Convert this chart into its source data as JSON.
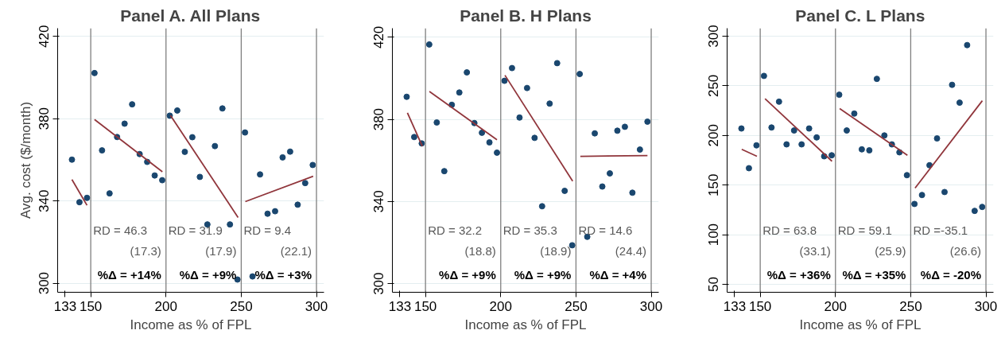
{
  "chart_data": [
    {
      "type": "scatter",
      "title": "Panel A. All Plans",
      "xlabel": "Income as % of FPL",
      "ylabel": "Avg. cost ($/month)",
      "xlim": [
        128,
        305
      ],
      "ylim": [
        295.6,
        424
      ],
      "xticks": [
        133,
        150,
        200,
        250,
        300
      ],
      "yticks": [
        300,
        340,
        380,
        420
      ],
      "grid": "y",
      "series": [
        {
          "marker": "circle",
          "color": "#1a476f",
          "x": [
            137.5,
            142.5,
            147.5,
            152.5,
            157.5,
            162.5,
            167.5,
            172.5,
            177.5,
            182.5,
            187.5,
            192.5,
            197.5,
            202.5,
            207.5,
            212.5,
            217.5,
            222.5,
            227.5,
            232.5,
            237.5,
            242.5,
            247.5,
            252.5,
            257.5,
            262.5,
            267.5,
            272.5,
            277.5,
            282.5,
            287.5,
            292.5,
            297.5
          ],
          "values": [
            360.1,
            339.4,
            341.5,
            402.2,
            364.6,
            343.7,
            371.1,
            377.6,
            387.0,
            362.8,
            359.0,
            352.4,
            350.1,
            381.5,
            384.0,
            363.9,
            371.0,
            351.7,
            328.6,
            366.7,
            385.0,
            328.6,
            301.8,
            373.3,
            303.3,
            352.9,
            333.8,
            335.0,
            361.2,
            364.0,
            338.2,
            348.7,
            357.5
          ]
        },
        {
          "type": "line",
          "color": "#90353b",
          "x": [
            137.5,
            147.5
          ],
          "values": [
            350.4,
            337.9
          ]
        },
        {
          "type": "line",
          "color": "#90353b",
          "x": [
            152.5,
            197.6
          ],
          "values": [
            379.6,
            354.2
          ]
        },
        {
          "type": "line",
          "color": "#90353b",
          "x": [
            203.0,
            247.9
          ],
          "values": [
            381.6,
            332.0
          ]
        },
        {
          "type": "line",
          "color": "#90353b",
          "x": [
            252.7,
            297.8
          ],
          "values": [
            339.7,
            352.0
          ]
        }
      ],
      "ref_lines": [
        {
          "axis": "x",
          "value": 150,
          "color": "#7f7f7f"
        },
        {
          "axis": "x",
          "value": 200,
          "color": "#7f7f7f"
        },
        {
          "axis": "x",
          "value": 250,
          "color": "#7f7f7f"
        },
        {
          "axis": "x",
          "value": 300,
          "color": "#7f7f7f"
        }
      ],
      "annotations": [
        "RD = 46.3",
        "(17.3)",
        "%Δ = +14%",
        "RD = 31.9",
        "(17.9)",
        "%Δ = +9%",
        "RD = 9.4",
        "(22.1)",
        "%Δ = +3%"
      ]
    },
    {
      "type": "scatter",
      "title": "Panel B. H Plans",
      "xlabel": "Income as % of FPL",
      "xlim": [
        128,
        305
      ],
      "ylim": [
        295.8,
        424.4
      ],
      "xticks": [
        133,
        150,
        200,
        250,
        300
      ],
      "yticks": [
        300,
        340,
        380,
        420
      ],
      "grid": "y",
      "series": [
        {
          "marker": "circle",
          "color": "#1a476f",
          "x": [
            137.5,
            142.5,
            147.5,
            152.5,
            157.5,
            162.5,
            167.5,
            172.5,
            177.5,
            182.5,
            187.5,
            192.5,
            197.5,
            202.5,
            207.5,
            212.5,
            217.5,
            222.5,
            227.5,
            232.5,
            237.5,
            242.5,
            247.5,
            252.5,
            257.5,
            262.5,
            267.5,
            272.5,
            277.5,
            282.5,
            287.5,
            292.5,
            297.5
          ],
          "values": [
            391.0,
            371.4,
            368.3,
            416.5,
            378.5,
            354.8,
            387.1,
            393.1,
            402.9,
            378.2,
            373.5,
            368.8,
            363.8,
            398.8,
            405.0,
            380.9,
            395.3,
            371.0,
            337.7,
            387.7,
            407.4,
            345.2,
            318.7,
            402.1,
            322.8,
            373.2,
            347.3,
            353.7,
            374.5,
            376.4,
            344.3,
            365.3,
            378.9
          ]
        },
        {
          "type": "line",
          "color": "#90353b",
          "x": [
            138.0,
            147.9
          ],
          "values": [
            383.2,
            366.9
          ]
        },
        {
          "type": "line",
          "color": "#90353b",
          "x": [
            152.6,
            197.5
          ],
          "values": [
            393.6,
            370.1
          ]
        },
        {
          "type": "line",
          "color": "#90353b",
          "x": [
            202.8,
            247.8
          ],
          "values": [
            401.5,
            349.9
          ]
        },
        {
          "type": "line",
          "color": "#90353b",
          "x": [
            252.9,
            297.5
          ],
          "values": [
            362.0,
            362.4
          ]
        }
      ],
      "ref_lines": [
        {
          "axis": "x",
          "value": 150,
          "color": "#7f7f7f"
        },
        {
          "axis": "x",
          "value": 200,
          "color": "#7f7f7f"
        },
        {
          "axis": "x",
          "value": 250,
          "color": "#7f7f7f"
        },
        {
          "axis": "x",
          "value": 300,
          "color": "#7f7f7f"
        }
      ],
      "annotations": [
        "RD = 32.2",
        "(18.8)",
        "%Δ = +9%",
        "RD = 35.3",
        "(18.9)",
        "%Δ = +9%",
        "RD = 14.6",
        "(24.4)",
        "%Δ = +4%"
      ]
    },
    {
      "type": "scatter",
      "title": "Panel C. L Plans",
      "xlabel": "Income as % of FPL",
      "xlim": [
        128,
        305
      ],
      "ylim": [
        42,
        308
      ],
      "xticks": [
        133,
        150,
        200,
        250,
        300
      ],
      "yticks": [
        50,
        100,
        150,
        200,
        250,
        300
      ],
      "grid": "y",
      "series": [
        {
          "marker": "circle",
          "color": "#1a476f",
          "x": [
            137.5,
            142.5,
            147.5,
            152.5,
            157.5,
            162.5,
            167.5,
            172.5,
            177.5,
            182.5,
            187.5,
            192.5,
            197.5,
            202.5,
            207.5,
            212.5,
            217.5,
            222.5,
            227.5,
            232.5,
            237.5,
            242.5,
            247.5,
            252.5,
            257.5,
            262.5,
            267.5,
            272.5,
            277.5,
            282.5,
            287.5,
            292.5,
            297.5
          ],
          "values": [
            207,
            167,
            190,
            260,
            208,
            234,
            191,
            205,
            191,
            207,
            198,
            179,
            180,
            241,
            205,
            222,
            186,
            185,
            257,
            200,
            191,
            183,
            160,
            131,
            140,
            170,
            197,
            143,
            251,
            233,
            291,
            124,
            128
          ]
        },
        {
          "type": "line",
          "color": "#90353b",
          "x": [
            137.7,
            147.8
          ],
          "values": [
            186,
            179
          ]
        },
        {
          "type": "line",
          "color": "#90353b",
          "x": [
            153.2,
            197.7
          ],
          "values": [
            237,
            174
          ]
        },
        {
          "type": "line",
          "color": "#90353b",
          "x": [
            202.8,
            247.8
          ],
          "values": [
            227,
            180
          ]
        },
        {
          "type": "line",
          "color": "#90353b",
          "x": [
            252.9,
            297.6
          ],
          "values": [
            147,
            235
          ]
        }
      ],
      "ref_lines": [
        {
          "axis": "x",
          "value": 150,
          "color": "#7f7f7f"
        },
        {
          "axis": "x",
          "value": 200,
          "color": "#7f7f7f"
        },
        {
          "axis": "x",
          "value": 250,
          "color": "#7f7f7f"
        },
        {
          "axis": "x",
          "value": 300,
          "color": "#7f7f7f"
        }
      ],
      "annotations": [
        "RD = 63.8",
        "(33.1)",
        "%Δ = +36%",
        "RD = 59.1",
        "(25.9)",
        "%Δ = +35%",
        "RD =-35.1",
        "(26.6)",
        "%Δ = -20%"
      ]
    }
  ]
}
